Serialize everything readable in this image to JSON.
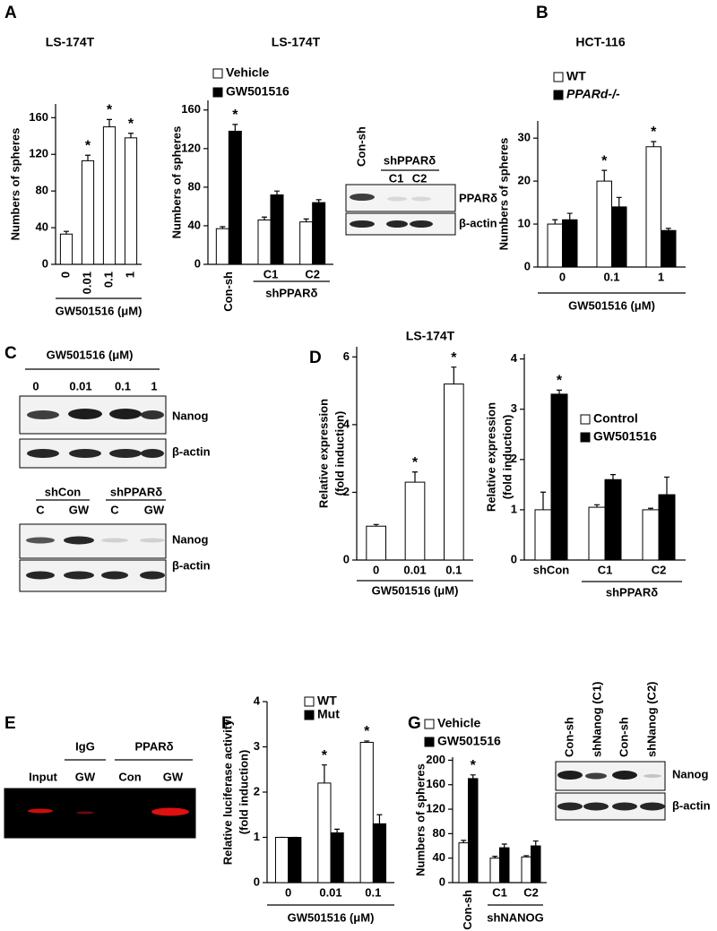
{
  "panel_labels": [
    "A",
    "B",
    "C",
    "D",
    "E",
    "F",
    "G"
  ],
  "chart_data": [
    {
      "type": "bar",
      "title": "LS-174T",
      "ylabel": "Numbers of spheres",
      "xlabel": "GW501516 (μM)",
      "categories": [
        "0",
        "0.01",
        "0.1",
        "1"
      ],
      "values": [
        33,
        113,
        150,
        138
      ],
      "errors": [
        3,
        6,
        8,
        5
      ],
      "significance": [
        null,
        "*",
        "*",
        "*"
      ],
      "color": "#ffffff",
      "ylim": [
        0,
        175
      ],
      "yticks": [
        0,
        40,
        80,
        120,
        160
      ]
    },
    {
      "type": "bar",
      "title": "LS-174T",
      "ylabel": "Numbers of spheres",
      "group_label": "shPPARδ",
      "categories": [
        "Con-sh",
        "C1",
        "C2"
      ],
      "series": [
        {
          "name": "Vehicle",
          "color": "#ffffff",
          "values": [
            37,
            46,
            44
          ],
          "errors": [
            2,
            3,
            3
          ],
          "significance": [
            null,
            null,
            null
          ]
        },
        {
          "name": "GW501516",
          "color": "#000000",
          "values": [
            138,
            72,
            64
          ],
          "errors": [
            7,
            4,
            3
          ],
          "significance": [
            "*",
            null,
            null
          ]
        }
      ],
      "ylim": [
        0,
        170
      ],
      "yticks": [
        0,
        40,
        80,
        120,
        160
      ]
    },
    {
      "type": "bar",
      "title": "HCT-116",
      "ylabel": "Numbers of spheres",
      "xlabel": "GW501516 (μM)",
      "categories": [
        "0",
        "0.1",
        "1"
      ],
      "series": [
        {
          "name": "WT",
          "color": "#ffffff",
          "values": [
            10,
            20,
            28
          ],
          "errors": [
            1,
            2.5,
            1.2
          ],
          "significance": [
            null,
            "*",
            "*"
          ]
        },
        {
          "name": "PPARd-/-",
          "color": "#000000",
          "values": [
            11,
            14,
            8.5
          ],
          "errors": [
            1.5,
            2.2,
            0.5
          ],
          "significance": [
            null,
            null,
            null
          ]
        }
      ],
      "ylim": [
        0,
        34
      ],
      "yticks": [
        0,
        10,
        20,
        30
      ]
    },
    {
      "type": "bar",
      "title": "LS-174T",
      "ylabel": [
        "Relative expression",
        "(fold induction)"
      ],
      "xlabel": "GW501516 (μM)",
      "categories": [
        "0",
        "0.01",
        "0.1"
      ],
      "values": [
        1,
        2.3,
        5.2
      ],
      "errors": [
        0.05,
        0.3,
        0.5
      ],
      "significance": [
        null,
        "*",
        "*"
      ],
      "color": "#ffffff",
      "ylim": [
        0,
        6.3
      ],
      "yticks": [
        0,
        2,
        4,
        6
      ]
    },
    {
      "type": "bar",
      "ylabel": [
        "Relative expression",
        "(fold induction)"
      ],
      "group_label": "shPPARδ",
      "categories": [
        "shCon",
        "C1",
        "C2"
      ],
      "series": [
        {
          "name": "Control",
          "color": "#ffffff",
          "values": [
            1,
            1.05,
            1.0
          ],
          "errors": [
            0.35,
            0.05,
            0.03
          ],
          "significance": [
            null,
            null,
            null
          ]
        },
        {
          "name": "GW501516",
          "color": "#000000",
          "values": [
            3.3,
            1.6,
            1.3
          ],
          "errors": [
            0.08,
            0.1,
            0.35
          ],
          "significance": [
            "*",
            null,
            null
          ]
        }
      ],
      "ylim": [
        0,
        4.1
      ],
      "yticks": [
        0,
        1,
        2,
        3,
        4
      ]
    },
    {
      "type": "bar",
      "ylabel": [
        "Relative luciferase activity",
        "(fold induction)"
      ],
      "xlabel": "GW501516 (μM)",
      "categories": [
        "0",
        "0.01",
        "0.1"
      ],
      "series": [
        {
          "name": "WT",
          "color": "#ffffff",
          "values": [
            1,
            2.2,
            3.1
          ],
          "errors": [
            0,
            0.4,
            0.03
          ],
          "significance": [
            null,
            "*",
            "*"
          ]
        },
        {
          "name": "Mut",
          "color": "#000000",
          "values": [
            1,
            1.1,
            1.3
          ],
          "errors": [
            0,
            0.08,
            0.2
          ],
          "significance": [
            null,
            null,
            null
          ]
        }
      ],
      "ylim": [
        0,
        4
      ],
      "yticks": [
        0,
        1,
        2,
        3,
        4
      ]
    },
    {
      "type": "bar",
      "ylabel": "Numbers of spheres",
      "group_label": "shNANOG",
      "categories": [
        "Con-sh",
        "C1",
        "C2"
      ],
      "series": [
        {
          "name": "Vehicle",
          "color": "#ffffff",
          "values": [
            65,
            40,
            42
          ],
          "errors": [
            4,
            3,
            2
          ],
          "significance": [
            null,
            null,
            null
          ]
        },
        {
          "name": "GW501516",
          "color": "#000000",
          "values": [
            170,
            57,
            60
          ],
          "errors": [
            6,
            6,
            8
          ],
          "significance": [
            "*",
            null,
            null
          ]
        }
      ],
      "ylim": [
        0,
        205
      ],
      "yticks": [
        0,
        40,
        80,
        120,
        160,
        200
      ]
    }
  ],
  "blots": [
    {
      "texts": [
        "Con-sh",
        "shPPARδ",
        "C1",
        "C2",
        "PPARδ",
        "β-actin"
      ]
    },
    {
      "texts": [
        "GW501516 (μM)",
        "0",
        "0.01",
        "0.1",
        "1",
        "Nanog",
        "β-actin"
      ]
    },
    {
      "texts": [
        "shCon",
        "shPPARδ",
        "C",
        "GW",
        "C",
        "GW",
        "Nanog",
        "β-actin"
      ]
    },
    {
      "texts": [
        "Input",
        "IgG",
        "GW",
        "PPARδ",
        "Con",
        "GW"
      ]
    },
    {
      "texts": [
        "Con-sh",
        "shNanog (C1)",
        "Con-sh",
        "shNanog (C2)",
        "Nanog",
        "β-actin"
      ]
    }
  ]
}
